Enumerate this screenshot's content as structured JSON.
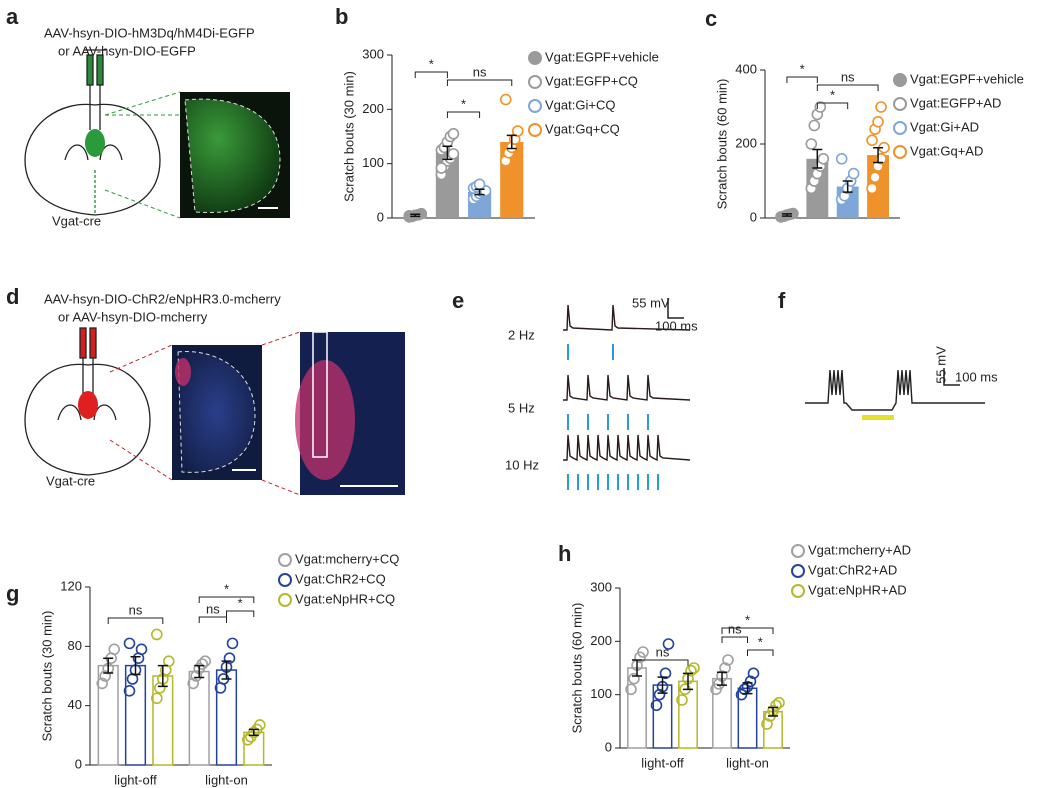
{
  "panel_letters": [
    "a",
    "b",
    "c",
    "d",
    "e",
    "f",
    "g",
    "h"
  ],
  "panel_a": {
    "virus": [
      "AAV-hsyn-DIO-hM3Dq/hM4Di-EGFP",
      "or AAV-hsyn-DIO-EGFP"
    ],
    "mouse": "Vgat-cre"
  },
  "panel_d": {
    "virus": [
      "AAV-hsyn-DIO-ChR2/eNpHR3.0-mcherry",
      "or AAV-hsyn-DIO-mcherry"
    ],
    "mouse": "Vgat-cre"
  },
  "panel_e": {
    "rates": [
      "2 Hz",
      "5 Hz",
      "10 Hz"
    ],
    "scale_v": "55 mV",
    "scale_t": "100 ms"
  },
  "panel_f": {
    "scale_v": "55 mV",
    "scale_t": "100 ms"
  },
  "chart_data": [
    {
      "type": "bar",
      "ylabel": "Scratch bouts (30 min)",
      "ylim": [
        0,
        300
      ],
      "yticks": [
        0,
        100,
        200,
        300
      ],
      "bar_style": "solid",
      "categories": [
        null
      ],
      "series": [
        {
          "name": "Vgat:EGPF+vehicle",
          "color": "#9a9a9a",
          "filled": true,
          "values": [
            5
          ],
          "errors": [
            2
          ],
          "points": [
            [
              2,
              3,
              5,
              6,
              8,
              4
            ]
          ]
        },
        {
          "name": "Vgat:EGFP+CQ",
          "color": "#9a9a9a",
          "values": [
            120
          ],
          "errors": [
            12
          ],
          "points": [
            [
              80,
              95,
              105,
              110,
              118,
              125,
              130,
              140,
              150,
              155,
              92
            ]
          ]
        },
        {
          "name": "Vgat:Gi+CQ",
          "color": "#7ea6d8",
          "values": [
            48
          ],
          "errors": [
            5
          ],
          "points": [
            [
              35,
              40,
              45,
              48,
              50,
              55,
              58,
              62
            ]
          ]
        },
        {
          "name": "Vgat:Gq+CQ",
          "color": "#f0922b",
          "values": [
            140
          ],
          "errors": [
            12
          ],
          "points": [
            [
              105,
              120,
              130,
              145,
              160,
              218
            ]
          ]
        }
      ],
      "annotations": [
        "*",
        "ns",
        "*"
      ]
    },
    {
      "type": "bar",
      "ylabel": "Scratch bouts (60 min)",
      "ylim": [
        0,
        400
      ],
      "yticks": [
        0,
        200,
        400
      ],
      "bar_style": "solid",
      "categories": [
        null
      ],
      "series": [
        {
          "name": "Vgat:EGPF+vehicle",
          "color": "#9a9a9a",
          "filled": true,
          "values": [
            8
          ],
          "errors": [
            3
          ],
          "points": [
            [
              3,
              5,
              8,
              10,
              12
            ]
          ]
        },
        {
          "name": "Vgat:EGFP+AD",
          "color": "#9a9a9a",
          "values": [
            160
          ],
          "errors": [
            25
          ],
          "points": [
            [
              80,
              100,
              120,
              140,
              160,
              200,
              250,
              280,
              300
            ]
          ]
        },
        {
          "name": "Vgat:Gi+AD",
          "color": "#7ea6d8",
          "values": [
            85
          ],
          "errors": [
            15
          ],
          "points": [
            [
              50,
              60,
              80,
              100,
              120,
              160
            ]
          ]
        },
        {
          "name": "Vgat:Gq+AD",
          "color": "#f0922b",
          "values": [
            170
          ],
          "errors": [
            20
          ],
          "points": [
            [
              80,
              110,
              140,
              160,
              190,
              210,
              240,
              260,
              300
            ]
          ]
        }
      ],
      "annotations": [
        "*",
        "ns",
        "*"
      ]
    },
    {
      "type": "bar",
      "ylabel": "Scratch bouts (30 min)",
      "ylim": [
        0,
        120
      ],
      "yticks": [
        0,
        40,
        80,
        120
      ],
      "bar_style": "outline",
      "categories": [
        "light-off",
        "light-on"
      ],
      "series": [
        {
          "name": "Vgat:mcherry+CQ",
          "color": "#a0a0a0",
          "values": [
            67,
            63
          ],
          "errors": [
            5,
            4
          ],
          "points": [
            [
              55,
              60,
              65,
              72,
              78
            ],
            [
              55,
              60,
              65,
              68,
              70
            ]
          ]
        },
        {
          "name": "Vgat:ChR2+CQ",
          "color": "#23439c",
          "values": [
            67,
            64
          ],
          "errors": [
            6,
            6
          ],
          "points": [
            [
              50,
              58,
              64,
              72,
              78,
              82
            ],
            [
              52,
              58,
              66,
              72,
              82
            ]
          ]
        },
        {
          "name": "Vgat:eNpHR+CQ",
          "color": "#b4b82c",
          "values": [
            60,
            22
          ],
          "errors": [
            7,
            2
          ],
          "points": [
            [
              45,
              52,
              58,
              64,
              70,
              88
            ],
            [
              17,
              19,
              22,
              24,
              27
            ]
          ]
        }
      ],
      "annotations": [
        "ns",
        "*",
        "ns",
        "*"
      ]
    },
    {
      "type": "bar",
      "ylabel": "Scratch bouts (60 min)",
      "ylim": [
        0,
        300
      ],
      "yticks": [
        0,
        100,
        200,
        300
      ],
      "bar_style": "outline",
      "categories": [
        "light-off",
        "light-on"
      ],
      "series": [
        {
          "name": "Vgat:mcherry+AD",
          "color": "#a0a0a0",
          "values": [
            150,
            130
          ],
          "errors": [
            15,
            12
          ],
          "points": [
            [
              110,
              130,
              155,
              170,
              180
            ],
            [
              110,
              120,
              135,
              150,
              165
            ]
          ]
        },
        {
          "name": "Vgat:ChR2+AD",
          "color": "#23439c",
          "values": [
            118,
            112
          ],
          "errors": [
            15,
            10
          ],
          "points": [
            [
              80,
              100,
              115,
              140,
              195
            ],
            [
              100,
              110,
              115,
              125,
              140
            ]
          ]
        },
        {
          "name": "Vgat:eNpHR+AD",
          "color": "#b4b82c",
          "values": [
            125,
            68
          ],
          "errors": [
            15,
            8
          ],
          "points": [
            [
              90,
              110,
              130,
              145,
              150
            ],
            [
              45,
              60,
              70,
              80,
              85
            ]
          ]
        }
      ],
      "annotations": [
        "ns",
        "*",
        "ns",
        "*"
      ]
    }
  ]
}
